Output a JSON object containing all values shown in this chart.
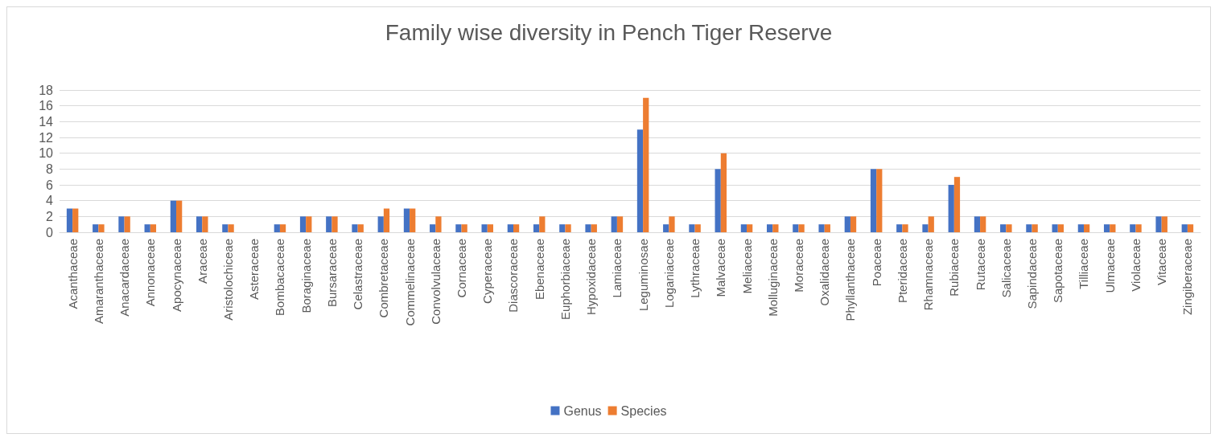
{
  "chart_data": {
    "type": "bar",
    "title": "Family wise diversity in Pench Tiger Reserve",
    "categories": [
      "Acanthaceae",
      "Amaranthaceae",
      "Anacardaceae",
      "Annonaceae",
      "Apocynaceae",
      "Araceae",
      "Aristolochiceae",
      "Asteraceae",
      "Bombacaceae",
      "Boraginaceae",
      "Bursaraceae",
      "Celastraceae",
      "Combretaceae",
      "Commelinaceae",
      "Convolvulaceae",
      "Cornaceae",
      "Cyperaceae",
      "Diascoraceae",
      "Ebenaceae",
      "Euphorbiaceae",
      "Hypoxidaceae",
      "Lamiaceae",
      "Leguminosae",
      "Loganiaceae",
      "Lythraceae",
      "Malvaceae",
      "Meliaceae",
      "Molluginaceae",
      "Moraceae",
      "Oxalidaceae",
      "Phyllanthaceae",
      "Poaceae",
      "Pteridaceae",
      "Rhamnaceae",
      "Rubiaceae",
      "Rutaceae",
      "Salicaceae",
      "Sapindaceae",
      "Sapotaceae",
      "Tilliaceae",
      "Ulmaceae",
      "Violaceae",
      "Vitaceae",
      "Zingiberaceae"
    ],
    "series": [
      {
        "name": "Genus",
        "color": "#4472c4",
        "values": [
          3,
          1,
          2,
          1,
          4,
          2,
          1,
          null,
          1,
          2,
          2,
          1,
          2,
          3,
          1,
          1,
          1,
          1,
          1,
          1,
          1,
          2,
          13,
          1,
          1,
          8,
          1,
          1,
          1,
          1,
          2,
          8,
          1,
          1,
          6,
          2,
          1,
          1,
          1,
          1,
          1,
          1,
          2,
          1
        ]
      },
      {
        "name": "Species",
        "color": "#ed7d31",
        "values": [
          3,
          1,
          2,
          1,
          4,
          2,
          1,
          null,
          1,
          2,
          2,
          1,
          3,
          3,
          2,
          1,
          1,
          1,
          2,
          1,
          1,
          2,
          17,
          2,
          1,
          10,
          1,
          1,
          1,
          1,
          2,
          8,
          1,
          2,
          7,
          2,
          1,
          1,
          1,
          1,
          1,
          1,
          2,
          1
        ]
      }
    ],
    "ylim": [
      0,
      18
    ],
    "yticks": [
      0,
      2,
      4,
      6,
      8,
      10,
      12,
      14,
      16,
      18
    ],
    "grid": "y",
    "legend": "bottom"
  }
}
